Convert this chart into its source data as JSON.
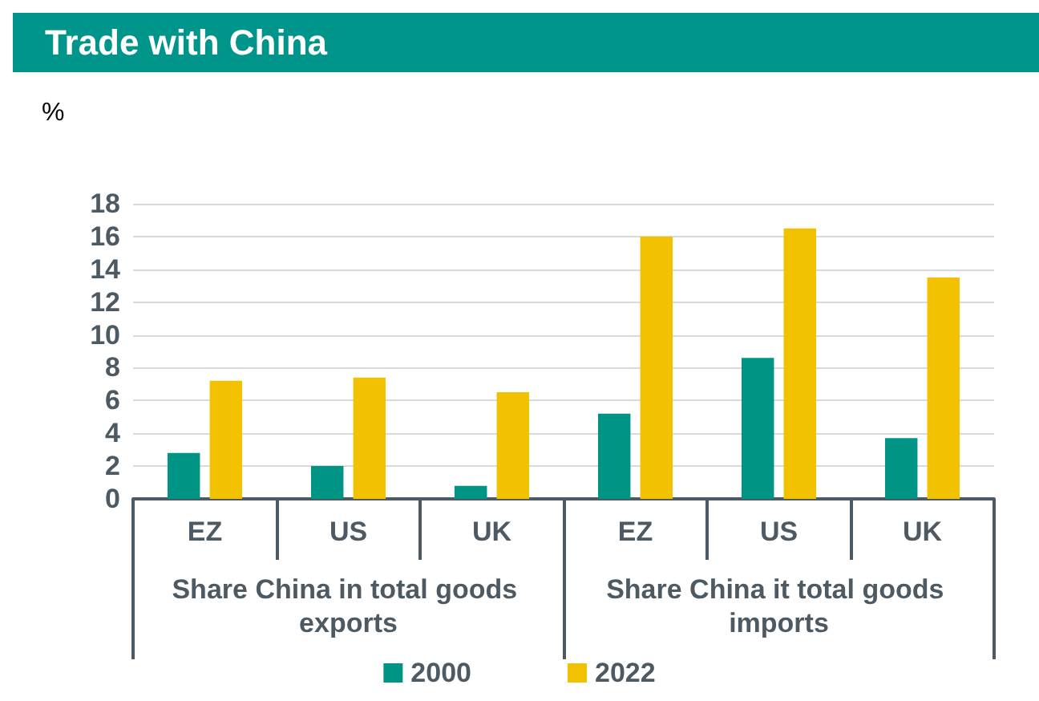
{
  "chart_data": {
    "type": "bar",
    "title": "Trade with China",
    "ylabel": "%",
    "categories": [
      "EZ",
      "US",
      "UK",
      "EZ",
      "US",
      "UK"
    ],
    "annotations": [
      "Share China in total goods exports",
      "Share China it total goods imports"
    ],
    "series": [
      {
        "name": "2000",
        "color": "#009485",
        "values": [
          2.8,
          2.0,
          0.8,
          5.2,
          8.6,
          3.7
        ]
      },
      {
        "name": "2022",
        "color": "#f2c200",
        "values": [
          7.2,
          7.4,
          6.5,
          16.0,
          16.5,
          13.5
        ]
      }
    ],
    "ylim": [
      0,
      18
    ],
    "yticks": [
      0,
      2,
      4,
      6,
      8,
      10,
      12,
      14,
      16,
      18
    ],
    "grid": "y",
    "legend": "bottom"
  }
}
